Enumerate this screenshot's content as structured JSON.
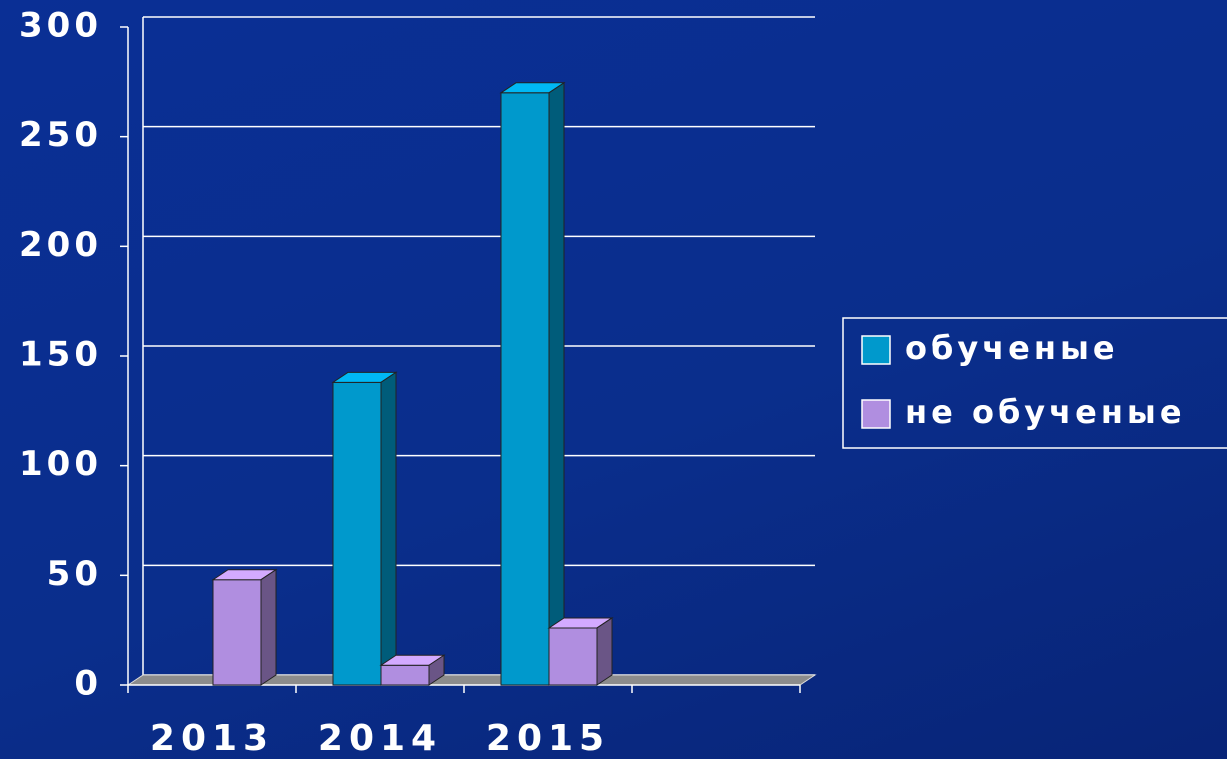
{
  "chart_data": {
    "type": "bar3d",
    "categories": [
      "2013",
      "2014",
      "2015",
      null
    ],
    "series": [
      {
        "name": "обученые",
        "color": "#0099cc",
        "values": [
          0,
          138,
          270,
          null
        ]
      },
      {
        "name": "не обученые",
        "color": "#b08ee0",
        "values": [
          48,
          9,
          26,
          null
        ]
      }
    ],
    "ylim": [
      0,
      300
    ],
    "yticks": [
      0,
      50,
      100,
      150,
      200,
      250,
      300
    ],
    "grid": true,
    "legend": "right"
  }
}
